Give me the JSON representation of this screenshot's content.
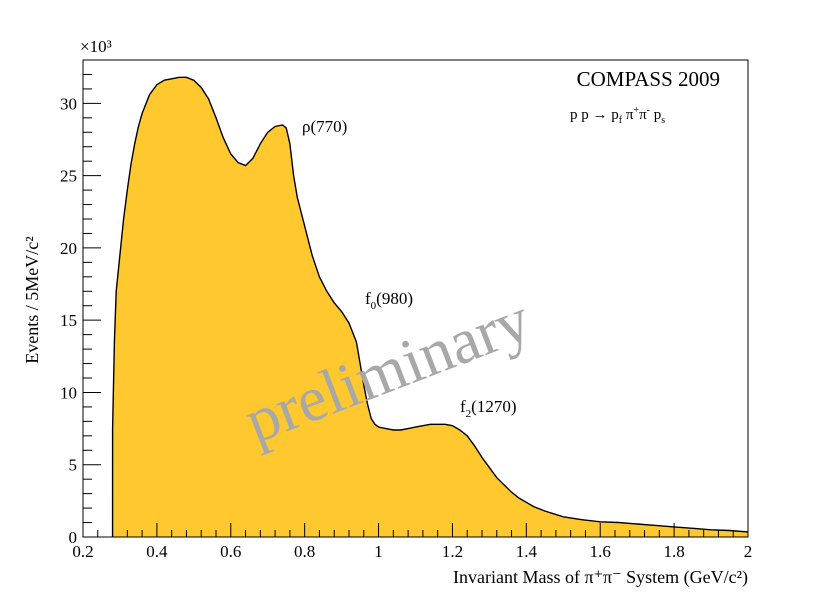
{
  "chart_data": {
    "type": "area",
    "xlabel": "Invariant Mass of π⁺π⁻ System (GeV/c²)",
    "ylabel": "Events / 5MeV/c²",
    "y_multiplier": "×10³",
    "xlim": [
      0.2,
      2.0
    ],
    "ylim": [
      0,
      33
    ],
    "x_ticks": [
      "0.2",
      "0.4",
      "0.6",
      "0.8",
      "1",
      "1.2",
      "1.4",
      "1.6",
      "1.8",
      "2"
    ],
    "x_tick_values": [
      0.2,
      0.4,
      0.6,
      0.8,
      1.0,
      1.2,
      1.4,
      1.6,
      1.8,
      2.0
    ],
    "y_ticks": [
      "0",
      "5",
      "10",
      "15",
      "20",
      "25",
      "30"
    ],
    "y_tick_values": [
      0,
      5,
      10,
      15,
      20,
      25,
      30
    ],
    "fill_color": "#ffc82e",
    "line_color": "#000000",
    "series": [
      {
        "x": [
          0.28,
          0.285,
          0.29,
          0.3,
          0.31,
          0.32,
          0.33,
          0.34,
          0.35,
          0.36,
          0.38,
          0.4,
          0.42,
          0.44,
          0.46,
          0.48,
          0.5,
          0.52,
          0.54,
          0.56,
          0.58,
          0.6,
          0.62,
          0.64,
          0.66,
          0.68,
          0.7,
          0.72,
          0.74,
          0.75,
          0.76,
          0.77,
          0.78,
          0.79,
          0.8,
          0.82,
          0.84,
          0.86,
          0.88,
          0.9,
          0.92,
          0.94,
          0.95,
          0.96,
          0.97,
          0.98,
          0.99,
          1.0,
          1.02,
          1.04,
          1.06,
          1.08,
          1.1,
          1.12,
          1.14,
          1.16,
          1.18,
          1.2,
          1.22,
          1.24,
          1.26,
          1.28,
          1.3,
          1.32,
          1.34,
          1.36,
          1.38,
          1.4,
          1.42,
          1.45,
          1.5,
          1.55,
          1.6,
          1.65,
          1.7,
          1.75,
          1.8,
          1.85,
          1.9,
          1.95,
          2.0
        ],
        "values": [
          7.5,
          13.5,
          17.0,
          19.5,
          22.0,
          24.0,
          25.8,
          27.2,
          28.4,
          29.3,
          30.6,
          31.3,
          31.6,
          31.7,
          31.8,
          31.8,
          31.6,
          31.1,
          30.3,
          29.0,
          27.6,
          26.5,
          25.9,
          25.7,
          26.2,
          27.2,
          28.0,
          28.4,
          28.5,
          28.3,
          27.2,
          25.0,
          23.5,
          22.5,
          21.5,
          19.5,
          18.0,
          17.0,
          16.2,
          15.6,
          14.8,
          13.5,
          12.0,
          10.5,
          9.2,
          8.2,
          7.8,
          7.6,
          7.5,
          7.4,
          7.4,
          7.5,
          7.6,
          7.7,
          7.8,
          7.8,
          7.8,
          7.7,
          7.4,
          7.0,
          6.3,
          5.5,
          4.8,
          4.1,
          3.6,
          3.1,
          2.7,
          2.4,
          2.1,
          1.8,
          1.4,
          1.2,
          1.05,
          1.0,
          0.9,
          0.8,
          0.7,
          0.6,
          0.5,
          0.45,
          0.35
        ]
      }
    ]
  },
  "texts": {
    "experiment": "COMPASS 2009",
    "reaction": "p p → p",
    "reaction_f": "f",
    "reaction_pi": " π",
    "reaction_plus": "+",
    "reaction_pi2": "π",
    "reaction_minus": "-",
    "reaction_ps": " p",
    "reaction_s": "s",
    "rho_label": "ρ(770)",
    "f0_f": "f",
    "f0_sub": "0",
    "f0_mass": "(980)",
    "f2_f": "f",
    "f2_sub": "2",
    "f2_mass": "(1270)",
    "watermark": "preliminary"
  }
}
